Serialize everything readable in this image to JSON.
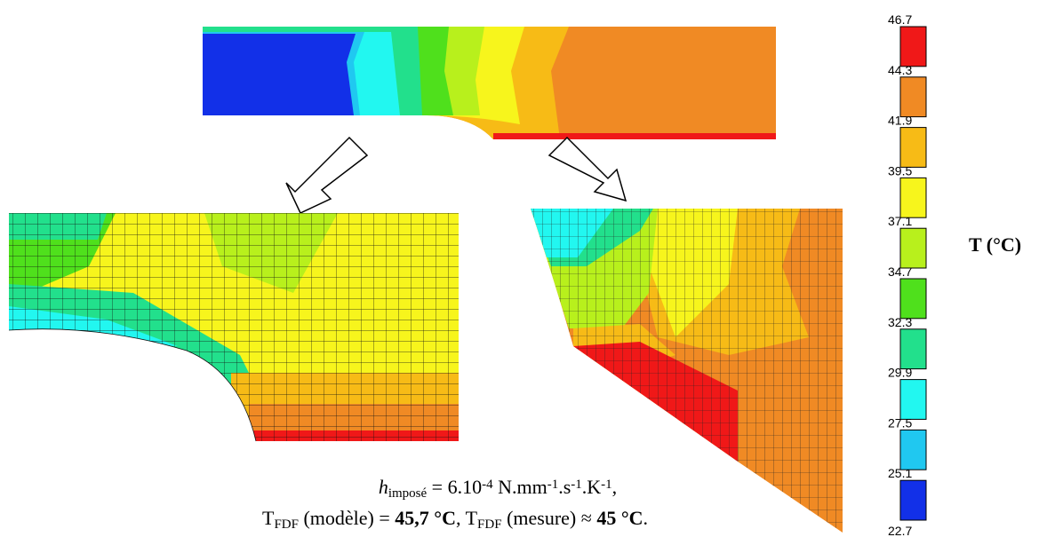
{
  "colorbar": {
    "label": "T (°C)",
    "ticks": [
      46.7,
      44.3,
      41.9,
      39.5,
      37.1,
      34.7,
      32.3,
      29.9,
      27.5,
      25.1,
      22.7
    ],
    "colors": [
      "#f01818",
      "#f08a24",
      "#f7bb16",
      "#f7f51c",
      "#b8f01c",
      "#4fe01c",
      "#22e08c",
      "#22f7f0",
      "#20c8f0",
      "#1230e8"
    ]
  },
  "caption": {
    "lines": [
      [
        {
          "text": "h",
          "style": "italic"
        },
        {
          "text": "imposé",
          "style": "sub"
        },
        {
          "text": " = 6.10",
          "style": "normal"
        },
        {
          "text": "-4",
          "style": "sup"
        },
        {
          "text": " N.mm",
          "style": "normal"
        },
        {
          "text": "-1",
          "style": "sup"
        },
        {
          "text": ".s",
          "style": "normal"
        },
        {
          "text": "-1",
          "style": "sup"
        },
        {
          "text": ".K",
          "style": "normal"
        },
        {
          "text": "-1",
          "style": "sup"
        },
        {
          "text": ",",
          "style": "normal"
        }
      ],
      [
        {
          "text": "T",
          "style": "normal"
        },
        {
          "text": "FDF",
          "style": "sub"
        },
        {
          "text": " (modèle) = ",
          "style": "normal"
        },
        {
          "text": "45,7 °C",
          "style": "bold"
        },
        {
          "text": ", T",
          "style": "normal"
        },
        {
          "text": "FDF",
          "style": "sub"
        },
        {
          "text": " (mesure) ≈ ",
          "style": "normal"
        },
        {
          "text": "45 °C",
          "style": "bold"
        },
        {
          "text": ".",
          "style": "normal"
        }
      ]
    ]
  }
}
